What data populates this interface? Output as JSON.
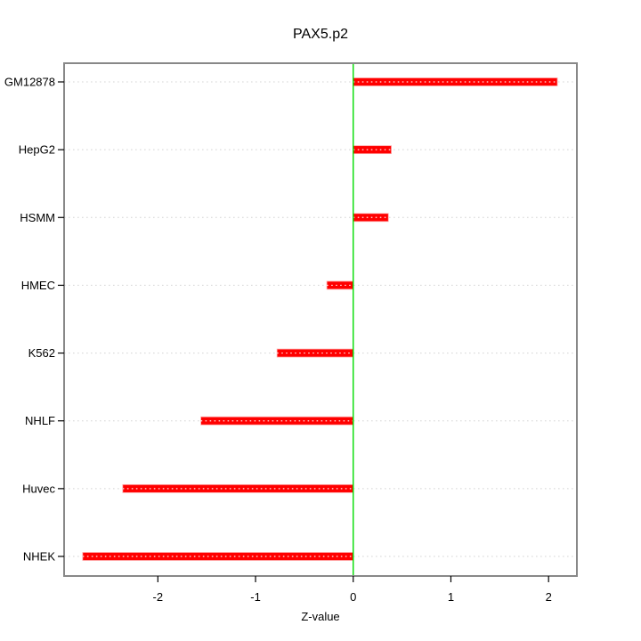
{
  "title": "PAX5.p2",
  "chart_data": {
    "type": "bar",
    "orientation": "horizontal",
    "title": "PAX5.p2",
    "xlabel": "Z-value",
    "ylabel": "",
    "categories": [
      "GM12878",
      "HepG2",
      "HSMM",
      "HMEC",
      "K562",
      "NHLF",
      "Huvec",
      "NHEK"
    ],
    "values": [
      2.09,
      0.39,
      0.36,
      -0.27,
      -0.78,
      -1.56,
      -2.36,
      -2.77
    ],
    "xlim": [
      -2.96,
      2.29
    ],
    "xticks": [
      "-2",
      "-1",
      "0",
      "1",
      "2"
    ],
    "xtick_values": [
      -2,
      -1,
      0,
      1,
      2
    ],
    "grid": "horizontal-dotted",
    "legend": "none",
    "colors": {
      "bar": "#ff0000",
      "bar_edge": "#ffaaaa",
      "bar_dots": "#ffffff",
      "zero_line": "#00dd00",
      "plot_border": "#888888",
      "grid_line": "#d4d4d4",
      "tick": "#000000",
      "text": "#000000",
      "background": "#ffffff"
    }
  }
}
